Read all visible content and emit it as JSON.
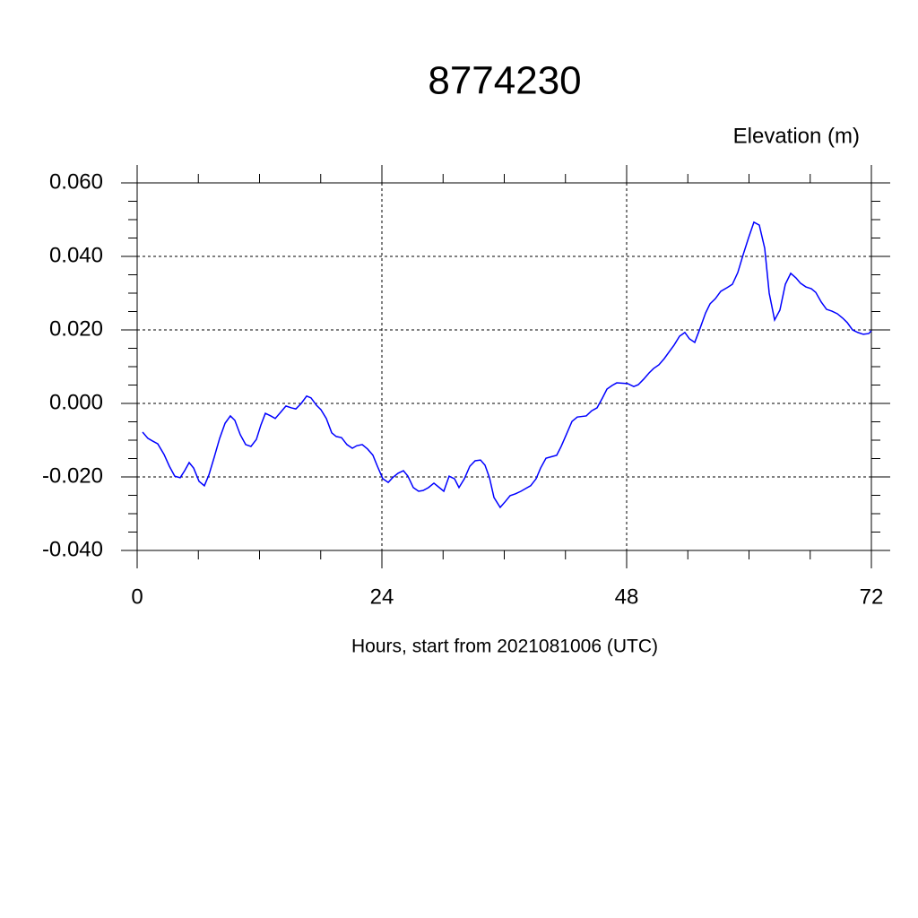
{
  "chart_data": {
    "type": "line",
    "title": "8774230",
    "subtitle": "Elevation (m)",
    "x_label": "Hours, start from 2021081006 (UTC)",
    "xlim": [
      0,
      72
    ],
    "xticks": [
      0,
      24,
      48,
      72
    ],
    "ylim": [
      -0.04,
      0.06
    ],
    "yticks": [
      {
        "value": -0.04,
        "label": "-0.040"
      },
      {
        "value": -0.02,
        "label": "-0.020"
      },
      {
        "value": 0,
        "label": "0.000"
      },
      {
        "value": 0.02,
        "label": "0.020"
      },
      {
        "value": 0.04,
        "label": "0.040"
      },
      {
        "value": 0.06,
        "label": "0.060"
      }
    ],
    "grid": true,
    "series": [
      {
        "color": "#0000ff",
        "x": [
          0.53,
          1.05,
          1.49,
          2.02,
          2.64,
          3.16,
          3.69,
          4.22,
          4.66,
          5.1,
          5.54,
          6.07,
          6.59,
          7.03,
          7.56,
          8.09,
          8.62,
          9.14,
          9.58,
          10.11,
          10.64,
          11.16,
          11.69,
          12.13,
          12.57,
          13.1,
          13.54,
          14.07,
          14.59,
          15.12,
          15.56,
          16.09,
          16.62,
          17.05,
          17.58,
          18.02,
          18.55,
          19.08,
          19.52,
          20.04,
          20.57,
          21.1,
          21.54,
          22.07,
          22.59,
          23.12,
          23.56,
          24.09,
          24.62,
          25.05,
          25.58,
          26.11,
          26.55,
          27.08,
          27.6,
          28.04,
          28.57,
          29.1,
          29.63,
          30.07,
          30.59,
          31.12,
          31.56,
          32.09,
          32.62,
          33.14,
          33.67,
          34.11,
          34.55,
          34.99,
          35.6,
          36.13,
          36.57,
          37.1,
          37.63,
          38.07,
          38.59,
          39.12,
          39.56,
          40.09,
          41.14,
          41.58,
          42.11,
          42.64,
          43.16,
          44.04,
          44.57,
          45.1,
          45.63,
          46.07,
          46.59,
          47.03,
          48.09,
          48.7,
          49.14,
          49.67,
          50.2,
          50.64,
          51.16,
          51.69,
          52.13,
          52.66,
          53.19,
          53.71,
          54.15,
          54.68,
          55.21,
          55.74,
          56.18,
          56.7,
          57.23,
          57.85,
          58.37,
          58.9,
          59.43,
          59.96,
          60.48,
          61.01,
          61.54,
          61.98,
          62.51,
          63.03,
          63.56,
          64.09,
          64.62,
          65.05,
          65.58,
          66.11,
          66.55,
          67.08,
          67.6,
          68.13,
          68.66,
          69.19,
          69.63,
          70.15,
          70.68,
          71.21,
          71.74,
          72.0
        ],
        "values": [
          -0.0078,
          -0.0095,
          -0.0102,
          -0.011,
          -0.0139,
          -0.0171,
          -0.0198,
          -0.0202,
          -0.0183,
          -0.0161,
          -0.0176,
          -0.0212,
          -0.0224,
          -0.0195,
          -0.0146,
          -0.0095,
          -0.0054,
          -0.0034,
          -0.0046,
          -0.0085,
          -0.0112,
          -0.0117,
          -0.0098,
          -0.0059,
          -0.0027,
          -0.0034,
          -0.0041,
          -0.0024,
          -0.0007,
          -0.0012,
          -0.0015,
          0.0,
          0.002,
          0.0015,
          -0.0005,
          -0.0017,
          -0.0041,
          -0.008,
          -0.009,
          -0.0093,
          -0.0112,
          -0.0122,
          -0.0115,
          -0.0112,
          -0.0124,
          -0.0141,
          -0.0171,
          -0.0205,
          -0.0215,
          -0.0202,
          -0.019,
          -0.0183,
          -0.0198,
          -0.0229,
          -0.0239,
          -0.0237,
          -0.0229,
          -0.0217,
          -0.0229,
          -0.0239,
          -0.0198,
          -0.0205,
          -0.0229,
          -0.0205,
          -0.0171,
          -0.0156,
          -0.0154,
          -0.0168,
          -0.0202,
          -0.0256,
          -0.0283,
          -0.0266,
          -0.0251,
          -0.0246,
          -0.0239,
          -0.0232,
          -0.0224,
          -0.0205,
          -0.0176,
          -0.0149,
          -0.0141,
          -0.0117,
          -0.0083,
          -0.0049,
          -0.0037,
          -0.0034,
          -0.002,
          -0.0012,
          0.0015,
          0.0039,
          0.0049,
          0.0056,
          0.0054,
          0.0046,
          0.0051,
          0.0066,
          0.0083,
          0.0095,
          0.0105,
          0.0122,
          0.0139,
          0.0159,
          0.0183,
          0.0193,
          0.0176,
          0.0166,
          0.0205,
          0.0246,
          0.0271,
          0.0285,
          0.0305,
          0.0315,
          0.0324,
          0.0356,
          0.0405,
          0.0451,
          0.0493,
          0.0485,
          0.0422,
          0.03,
          0.0227,
          0.0254,
          0.0324,
          0.0354,
          0.0341,
          0.0327,
          0.0317,
          0.0312,
          0.0302,
          0.0276,
          0.0256,
          0.0251,
          0.0244,
          0.0232,
          0.022,
          0.02,
          0.0193,
          0.0188,
          0.019,
          0.0198
        ]
      }
    ]
  }
}
